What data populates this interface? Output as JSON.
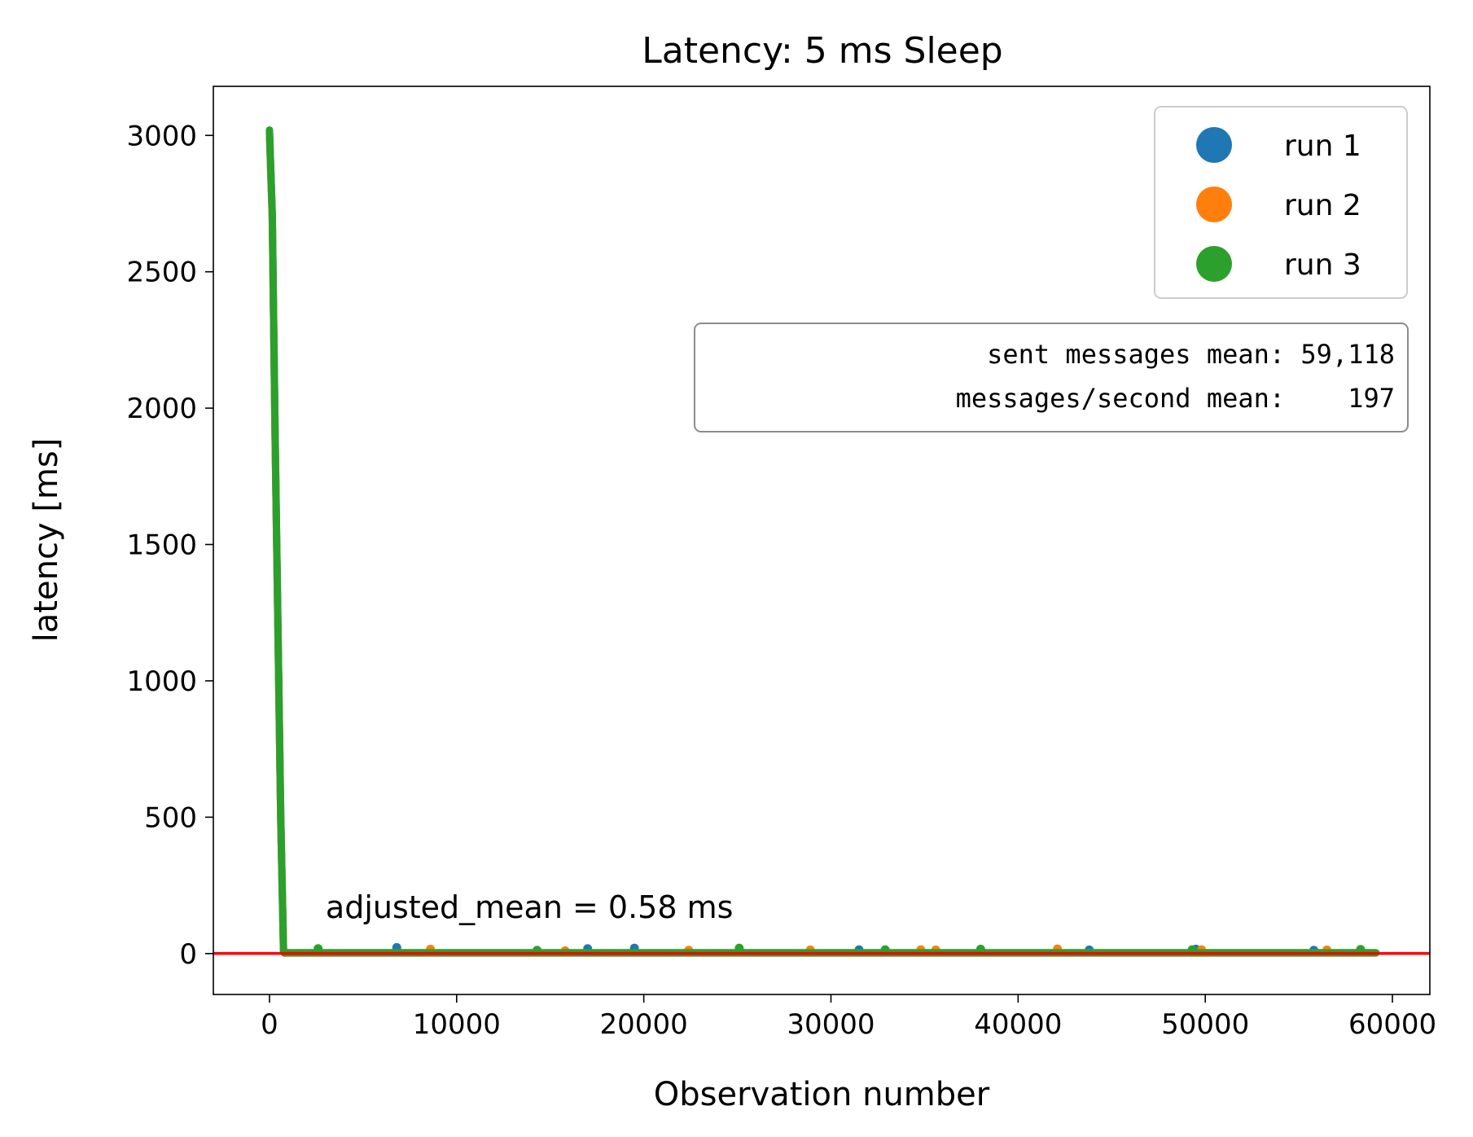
{
  "chart_data": {
    "type": "scatter",
    "title": "Latency: 5 ms Sleep",
    "xlabel": "Observation number",
    "ylabel": "latency [ms]",
    "xlim": [
      -3000,
      62000
    ],
    "ylim": [
      -150,
      3180
    ],
    "x_ticks": [
      0,
      10000,
      20000,
      30000,
      40000,
      50000,
      60000
    ],
    "y_ticks": [
      0,
      500,
      1000,
      1500,
      2000,
      2500,
      3000
    ],
    "grid": false,
    "legend_position": "top-right",
    "series": [
      {
        "name": "run 1",
        "color": "#1f77b4",
        "ramp": [
          [
            0,
            3010
          ],
          [
            150,
            2700
          ],
          [
            300,
            1900
          ],
          [
            450,
            1200
          ],
          [
            600,
            500
          ],
          [
            750,
            10
          ],
          [
            800,
            2
          ]
        ],
        "outliers": [
          [
            6800,
            22
          ],
          [
            17000,
            18
          ],
          [
            19500,
            20
          ],
          [
            31500,
            14
          ],
          [
            43800,
            13
          ],
          [
            49500,
            16
          ],
          [
            55800,
            12
          ]
        ]
      },
      {
        "name": "run 2",
        "color": "#ff7f0e",
        "ramp": [
          [
            0,
            3005
          ],
          [
            150,
            2690
          ],
          [
            300,
            1890
          ],
          [
            450,
            1190
          ],
          [
            600,
            490
          ],
          [
            750,
            9
          ],
          [
            800,
            2
          ]
        ],
        "outliers": [
          [
            8600,
            16
          ],
          [
            15800,
            10
          ],
          [
            22400,
            12
          ],
          [
            28900,
            13
          ],
          [
            34800,
            14
          ],
          [
            35600,
            13
          ],
          [
            42100,
            17
          ],
          [
            49800,
            14
          ],
          [
            56500,
            13
          ]
        ]
      },
      {
        "name": "run 3",
        "color": "#2ca02c",
        "ramp": [
          [
            0,
            3020
          ],
          [
            150,
            2710
          ],
          [
            300,
            1910
          ],
          [
            450,
            1210
          ],
          [
            600,
            510
          ],
          [
            750,
            11
          ],
          [
            800,
            2
          ]
        ],
        "outliers": [
          [
            2600,
            18
          ],
          [
            14300,
            12
          ],
          [
            25100,
            20
          ],
          [
            32900,
            14
          ],
          [
            38000,
            16
          ],
          [
            49300,
            14
          ],
          [
            58300,
            15
          ]
        ]
      }
    ],
    "baseline_range": [
      800,
      59118
    ],
    "mean_line": {
      "y": 0.58,
      "color": "#ff0000"
    },
    "annotation": {
      "text": "adjusted_mean = 0.58 ms",
      "x": 3000,
      "y": 130
    },
    "stats_box": {
      "line1": "  sent messages mean: 59,118",
      "line2": "messages/second mean:    197"
    }
  }
}
